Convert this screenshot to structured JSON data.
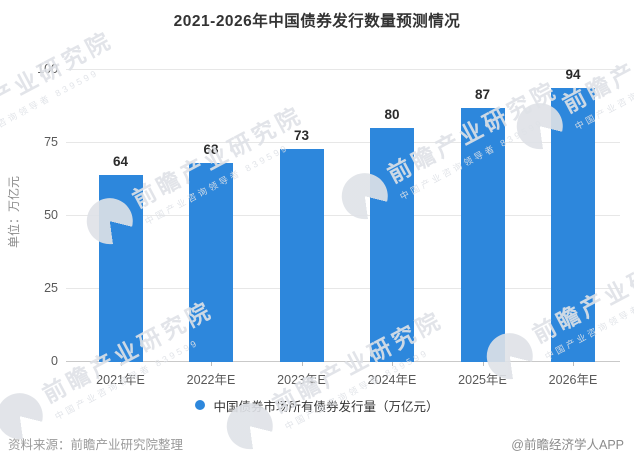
{
  "chart_data": {
    "type": "bar",
    "title": "2021-2026年中国债券发行数量预测情况",
    "categories": [
      "2021年E",
      "2022年E",
      "2023年E",
      "2024年E",
      "2025年E",
      "2026年E"
    ],
    "values": [
      64,
      68,
      73,
      80,
      87,
      94
    ],
    "xlabel": "",
    "ylabel": "单位：万亿元",
    "ylim": [
      0,
      100
    ],
    "yticks": [
      0,
      25,
      50,
      75,
      100
    ],
    "grid": true,
    "legend_position": "bottom",
    "bar_color": "#2d87dc"
  },
  "legend": {
    "label": "中国债券市场所有债券发行量（万亿元）",
    "marker_color": "#2d87dc"
  },
  "footer": {
    "source": "资料来源：前瞻产业研究院整理",
    "credit": "@前瞻经济学人APP"
  },
  "watermark": {
    "logo": "qianzhan-logo",
    "text": "前瞻产业研究院",
    "sub_text": "中国产业咨询领导者 839599"
  }
}
